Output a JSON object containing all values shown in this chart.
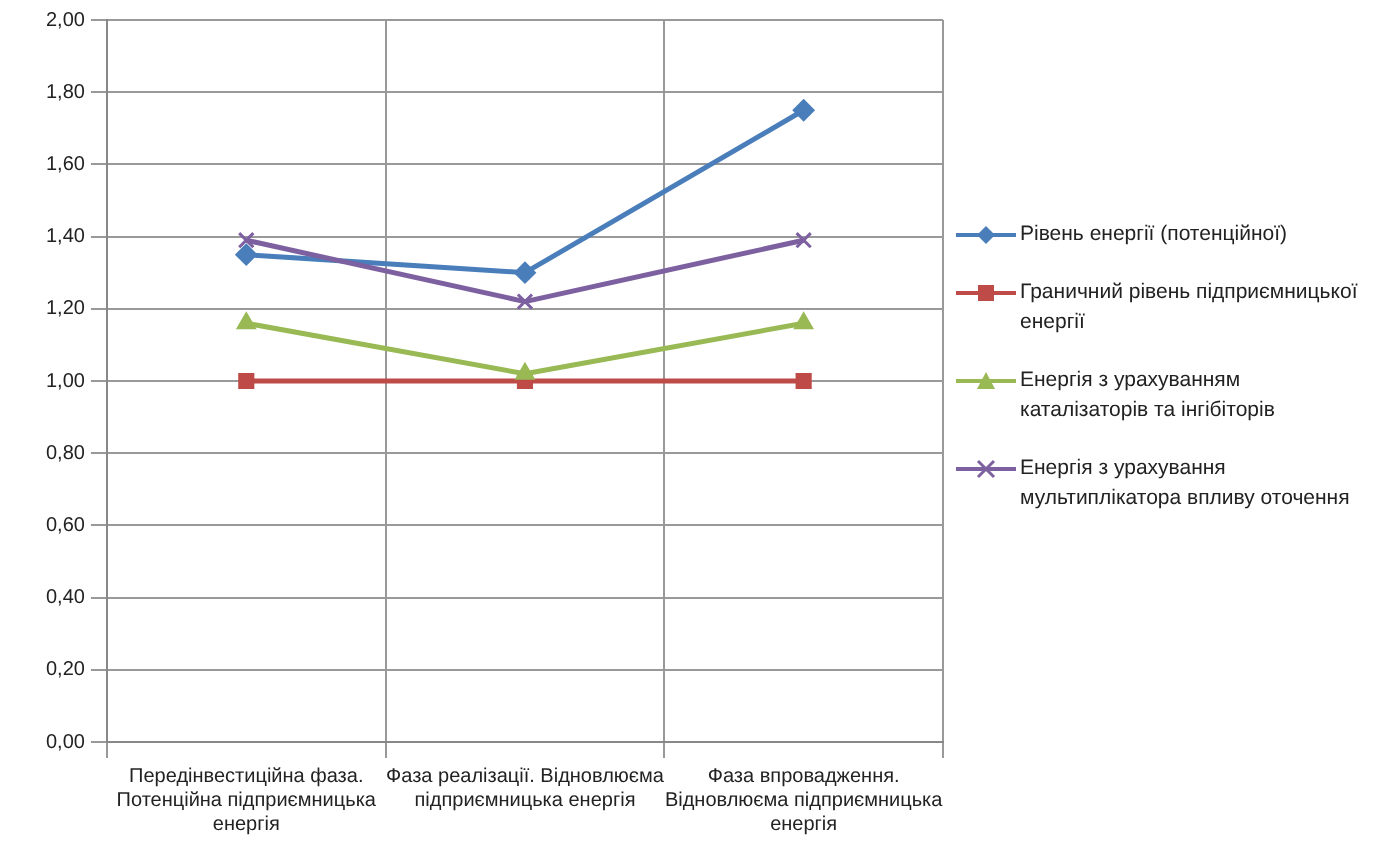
{
  "chart_data": {
    "type": "line",
    "categories": [
      "Передінвестиційна фаза. Потенційна підприємницька енергія",
      "Фаза реалізації. Відновлюєма підприємницька енергія",
      "Фаза впровадження. Відновлюєма підприємницька енергія"
    ],
    "series": [
      {
        "name": "Рівень енергії (потенційної)",
        "color": "#4a7ebb",
        "marker": "diamond",
        "values": [
          1.35,
          1.3,
          1.75
        ]
      },
      {
        "name": "Граничний рівень підприємницької енергії",
        "color": "#be4b48",
        "marker": "square",
        "values": [
          1.0,
          1.0,
          1.0
        ]
      },
      {
        "name": "Енергія з урахуванням каталізаторів та інгібіторів",
        "color": "#98b954",
        "marker": "triangle",
        "values": [
          1.16,
          1.02,
          1.16
        ]
      },
      {
        "name": "Енергія з урахування мультиплікатора впливу оточення",
        "color": "#7d60a0",
        "marker": "cross",
        "values": [
          1.39,
          1.22,
          1.39
        ]
      }
    ],
    "ylim": [
      0,
      2
    ],
    "yticks": [
      {
        "value": 0,
        "label": "0,00"
      },
      {
        "value": 0.2,
        "label": "0,20"
      },
      {
        "value": 0.4,
        "label": "0,40"
      },
      {
        "value": 0.6,
        "label": "0,60"
      },
      {
        "value": 0.8,
        "label": "0,80"
      },
      {
        "value": 1,
        "label": "1,00"
      },
      {
        "value": 1.2,
        "label": "1,20"
      },
      {
        "value": 1.4,
        "label": "1,40"
      },
      {
        "value": 1.6,
        "label": "1,60"
      },
      {
        "value": 1.8,
        "label": "1,80"
      },
      {
        "value": 2,
        "label": "2,00"
      }
    ],
    "grid": true,
    "legend": "right",
    "line_style": "solid"
  }
}
